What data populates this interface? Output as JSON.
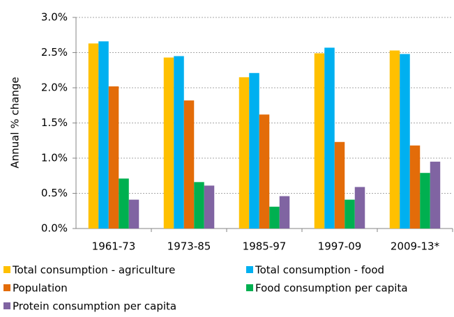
{
  "chart_data": {
    "type": "bar",
    "y_label": "Annual % change",
    "categories": [
      "1961-73",
      "1973-85",
      "1985-97",
      "1997-09",
      "2009-13*"
    ],
    "series": [
      {
        "name": "Total consumption - agriculture",
        "color": "#FFC000",
        "values": [
          2.63,
          2.43,
          2.15,
          2.49,
          2.53
        ]
      },
      {
        "name": "Total consumption - food",
        "color": "#00B0F0",
        "values": [
          2.66,
          2.45,
          2.21,
          2.57,
          2.48
        ]
      },
      {
        "name": "Population",
        "color": "#E36C09",
        "values": [
          2.02,
          1.82,
          1.62,
          1.23,
          1.18
        ]
      },
      {
        "name": "Food consumption per capita",
        "color": "#00B050",
        "values": [
          0.71,
          0.66,
          0.31,
          0.41,
          0.79
        ]
      },
      {
        "name": "Protein consumption per capita",
        "color": "#8064A2",
        "values": [
          0.41,
          0.61,
          0.46,
          0.59,
          0.95
        ]
      }
    ],
    "ylim": [
      0,
      3
    ],
    "yticks": [
      {
        "value": 0,
        "label": "0.0%"
      },
      {
        "value": 0.5,
        "label": "0.5%"
      },
      {
        "value": 1,
        "label": "1.0%"
      },
      {
        "value": 1.5,
        "label": "1.5%"
      },
      {
        "value": 2,
        "label": "2.0%"
      },
      {
        "value": 2.5,
        "label": "2.5%"
      },
      {
        "value": 3,
        "label": "3.0%"
      }
    ],
    "grid": true
  }
}
